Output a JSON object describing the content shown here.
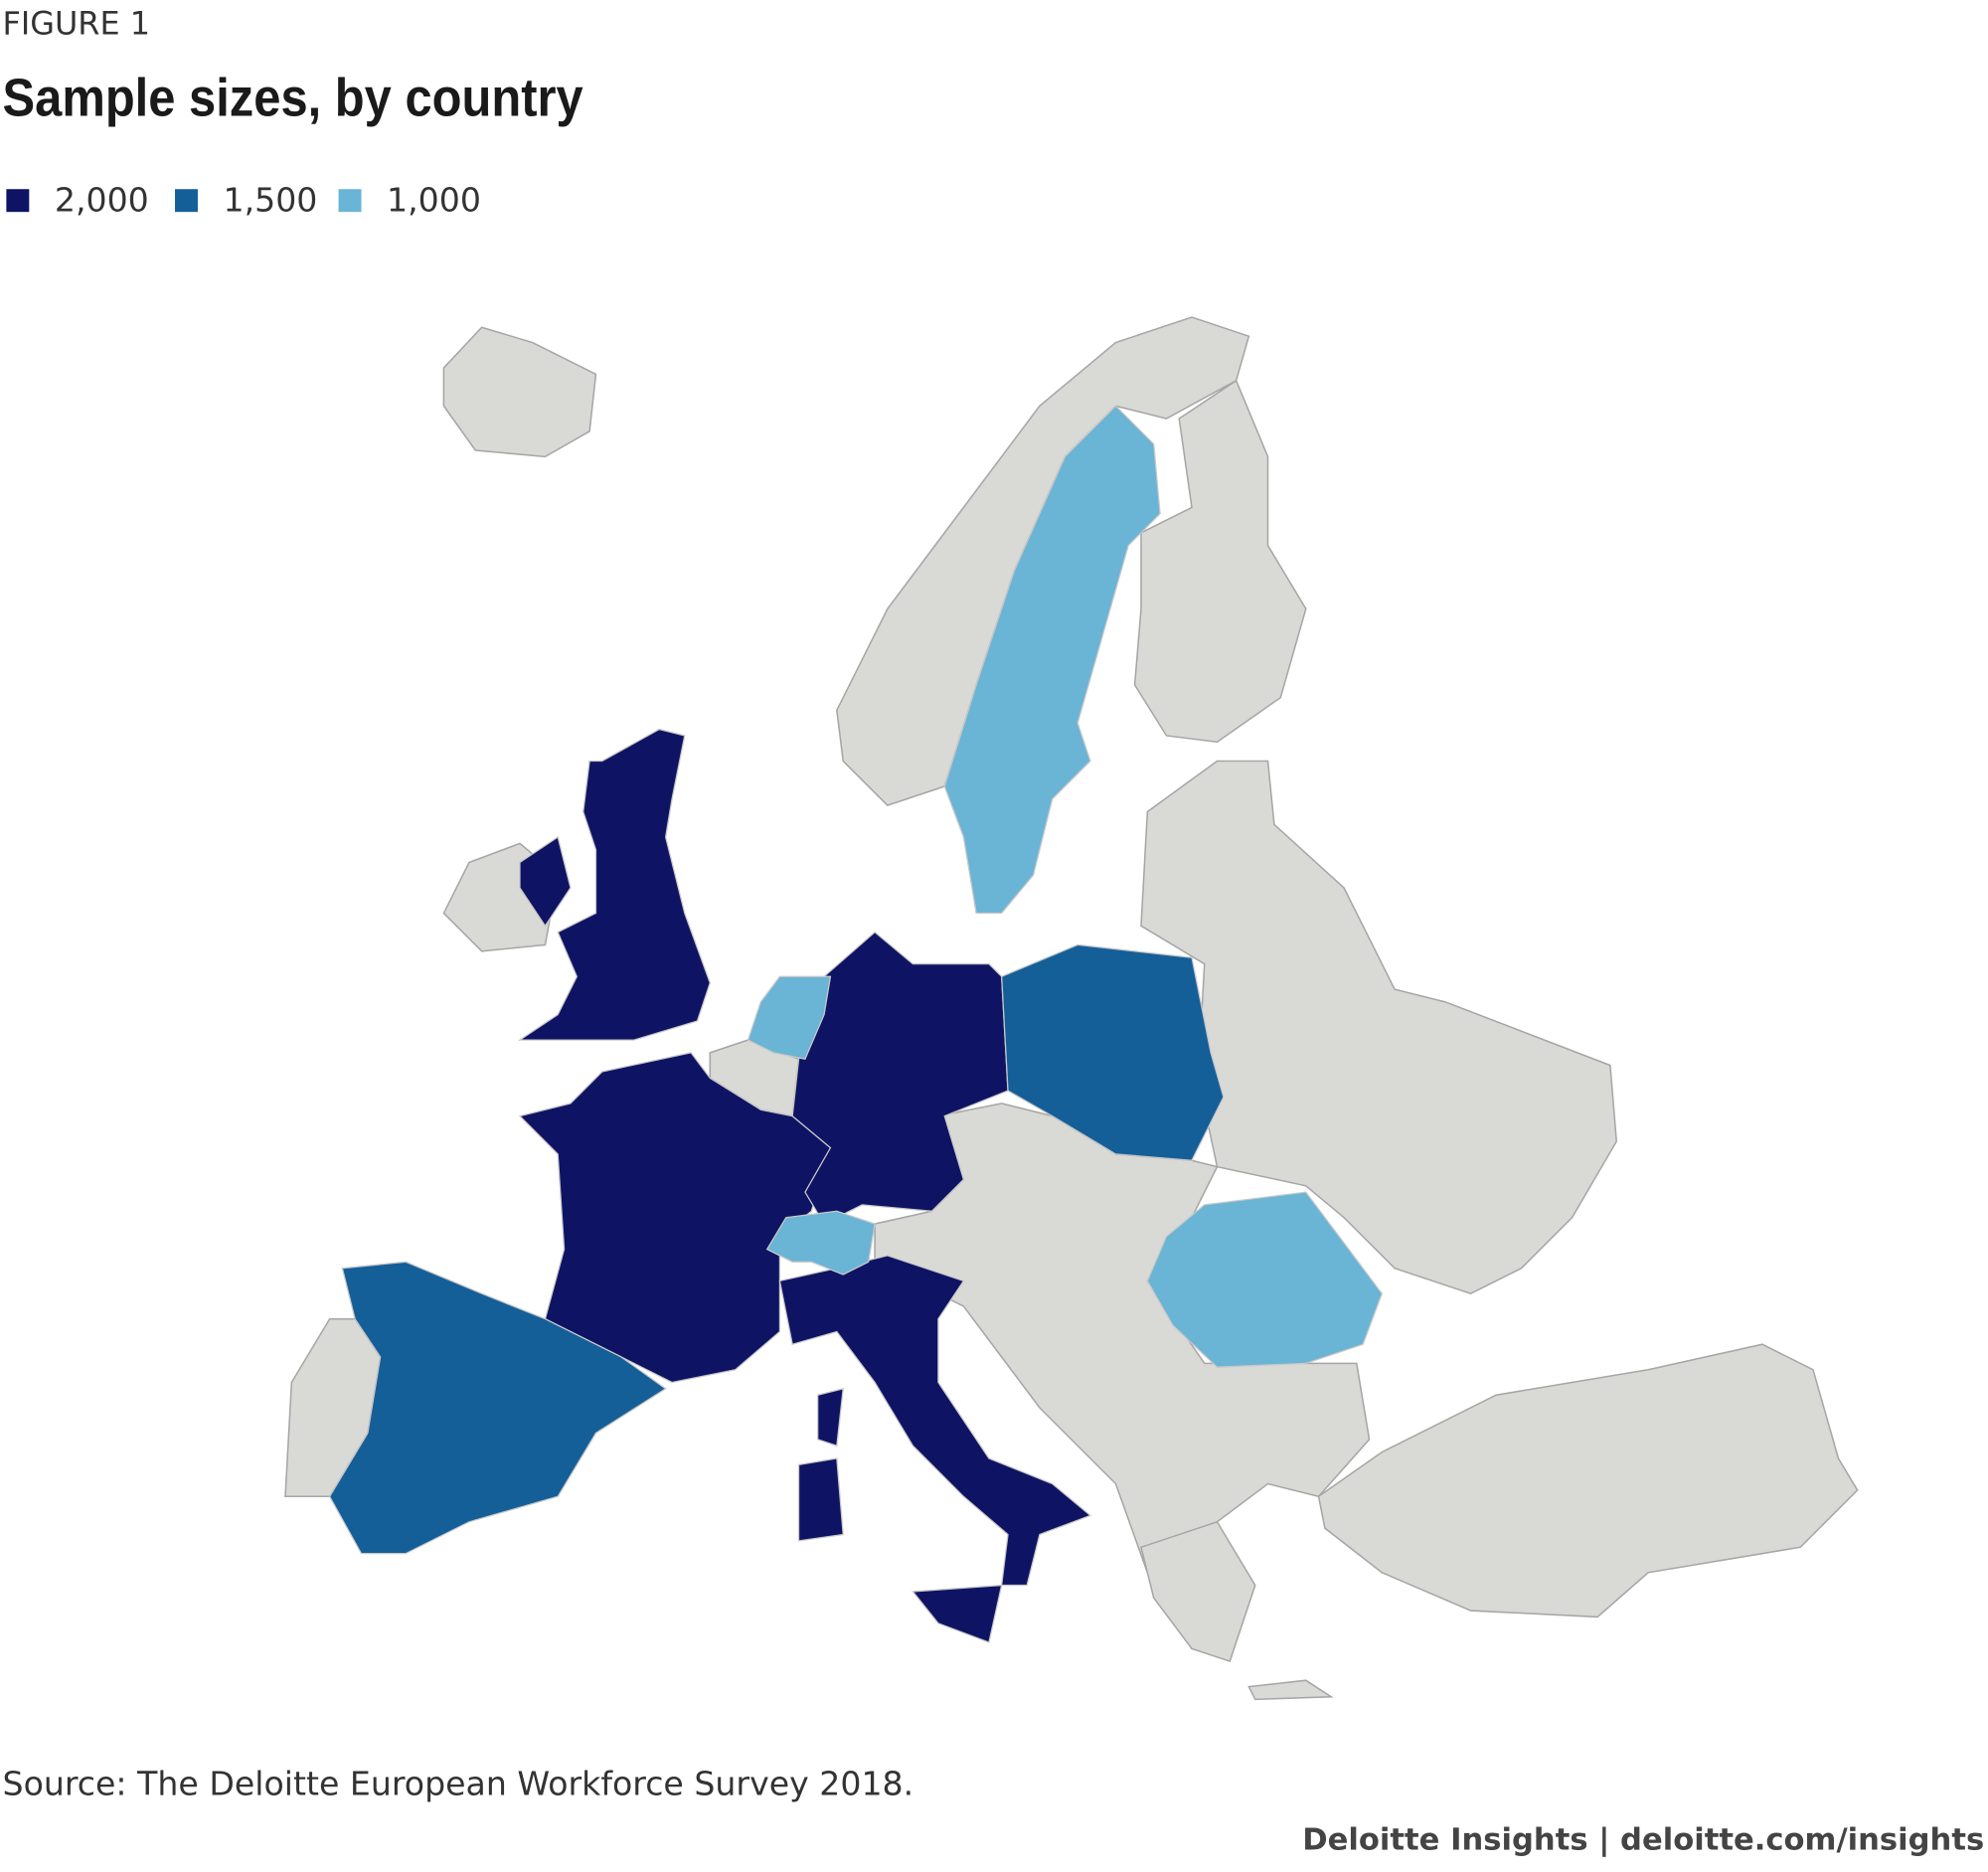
{
  "figure_label": "FIGURE 1",
  "title": "Sample sizes, by country",
  "legend": [
    {
      "value": 2000,
      "label": "2,000",
      "color": "#0e1463"
    },
    {
      "value": 1500,
      "label": "1,500",
      "color": "#155f99"
    },
    {
      "value": 1000,
      "label": "1,000",
      "color": "#6ab4d6"
    }
  ],
  "regions": {
    "values": [
      2000,
      2000,
      2000,
      2000,
      1500,
      1500,
      1000,
      1000,
      1000,
      1000
    ]
  },
  "source": "Source: The Deloitte European Workforce Survey 2018.",
  "footer": "Deloitte Insights | deloitte.com/insights"
}
